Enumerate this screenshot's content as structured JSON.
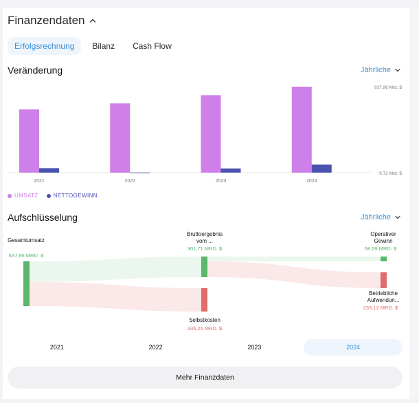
{
  "header": {
    "title": "Finanzendaten"
  },
  "tabs": [
    {
      "label": "Erfolgsrechnung",
      "active": true
    },
    {
      "label": "Bilanz",
      "active": false
    },
    {
      "label": "Cash Flow",
      "active": false
    }
  ],
  "change_section": {
    "title": "Veränderung",
    "frequency": "Jährliche"
  },
  "chart_data": {
    "type": "bar",
    "title": "Veränderung",
    "categories": [
      "2021",
      "2022",
      "2023",
      "2024"
    ],
    "series": [
      {
        "name": "UMSATZ",
        "color": "#ce7fe9",
        "values": [
          468.8,
          513.98,
          574.79,
          637.96
        ]
      },
      {
        "name": "NETTOGEWINN",
        "color": "#4a52b0",
        "values": [
          33.36,
          -2.72,
          30.43,
          59.25
        ]
      }
    ],
    "ylim": [
      -9.72,
      637.96
    ],
    "y_labels": [
      "637,96 Mrd. $",
      "−9,72 Mrd. $"
    ],
    "grid": false
  },
  "legend": [
    {
      "label": "UMSATZ",
      "color": "#ce7fe9"
    },
    {
      "label": "NETTOGEWINN",
      "color": "#4a52b0"
    }
  ],
  "breakdown": {
    "title": "Aufschlüsselung",
    "frequency": "Jährliche",
    "nodes": {
      "total": {
        "label": "Gesamtumsatz",
        "value": "637,96 MRD. $",
        "color": "#5ab76b"
      },
      "gross": {
        "label": "Bruttoergebnis vom ...",
        "value": "301,71 MRD. $",
        "color": "#5ab76b"
      },
      "cost": {
        "label": "Selbstkosten",
        "value": "336,25 MRD. $",
        "color": "#e06c6c"
      },
      "operating": {
        "label": "Operativer Gewinn",
        "value": "68,59 MRD. $",
        "color": "#5ab76b"
      },
      "opex": {
        "label": "Betriebliche Aufwendun...",
        "value": "233,12 MRD. $",
        "color": "#e06c6c"
      }
    }
  },
  "years": [
    {
      "label": "2021",
      "active": false
    },
    {
      "label": "2022",
      "active": false
    },
    {
      "label": "2023",
      "active": false
    },
    {
      "label": "2024",
      "active": true
    }
  ],
  "more_button": {
    "label": "Mehr Finanzdaten"
  }
}
